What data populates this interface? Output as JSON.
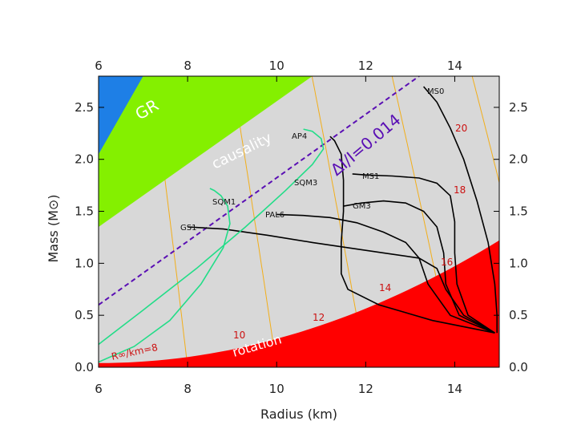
{
  "chart_data": {
    "type": "line",
    "title": "",
    "xlabel": "Radius (km)",
    "ylabel": "Mass (M⊙)",
    "xlim": [
      6,
      15
    ],
    "ylim": [
      0,
      2.8
    ],
    "xticks": [
      "6",
      "8",
      "10",
      "12",
      "14"
    ],
    "yticks": [
      "0.0",
      "0.5",
      "1.0",
      "1.5",
      "2.0",
      "2.5"
    ],
    "regions": [
      {
        "name": "GR",
        "color": "#1e7fe6"
      },
      {
        "name": "causality",
        "color": "#84f000"
      },
      {
        "name": "rotation",
        "color": "#ff0000"
      }
    ],
    "limit_line": {
      "label": "ΔI/I=0.014",
      "color": "#5a0fb4",
      "x": [
        6,
        13.2
      ],
      "y": [
        0.6,
        2.8
      ]
    },
    "background_color": "#d8d8d8",
    "iso_radius_color": "#f2ae1a",
    "iso_radius_labels": [
      "R∞/km=8",
      "10",
      "12",
      "14",
      "16",
      "18",
      "20"
    ],
    "eos_curves": [
      {
        "name": "MS0",
        "color": "#000000",
        "x": [
          14.95,
          14.95,
          14.9,
          14.75,
          14.5,
          14.2,
          13.9,
          13.6,
          13.4,
          13.3
        ],
        "y": [
          0.33,
          0.5,
          0.8,
          1.2,
          1.6,
          2.0,
          2.3,
          2.55,
          2.65,
          2.7
        ]
      },
      {
        "name": "MS1",
        "color": "#000000",
        "x": [
          14.9,
          14.3,
          14.05,
          14.0,
          14.0,
          13.9,
          13.6,
          13.2,
          12.6,
          12.0,
          11.7
        ],
        "y": [
          0.33,
          0.5,
          0.8,
          1.1,
          1.4,
          1.65,
          1.77,
          1.82,
          1.84,
          1.85,
          1.86
        ]
      },
      {
        "name": "GM3",
        "color": "#000000",
        "x": [
          14.9,
          14.1,
          13.8,
          13.75,
          13.6,
          13.3,
          12.9,
          12.4,
          11.9,
          11.5
        ],
        "y": [
          0.33,
          0.5,
          0.8,
          1.1,
          1.35,
          1.5,
          1.58,
          1.6,
          1.58,
          1.55
        ]
      },
      {
        "name": "AP4",
        "color": "#000000",
        "x": [
          14.9,
          13.5,
          12.3,
          11.6,
          11.45,
          11.45,
          11.5,
          11.5,
          11.45,
          11.3,
          11.2
        ],
        "y": [
          0.33,
          0.45,
          0.6,
          0.75,
          0.9,
          1.2,
          1.5,
          1.8,
          2.05,
          2.18,
          2.22
        ]
      },
      {
        "name": "PAL6",
        "color": "#000000",
        "x": [
          14.9,
          13.9,
          13.4,
          13.2,
          12.9,
          12.4,
          11.8,
          11.2,
          10.6,
          10.0
        ],
        "y": [
          0.33,
          0.5,
          0.8,
          1.05,
          1.2,
          1.3,
          1.39,
          1.44,
          1.46,
          1.47
        ]
      },
      {
        "name": "GS1",
        "color": "#000000",
        "x": [
          14.9,
          14.2,
          13.8,
          13.6,
          13.2,
          12.4,
          11.6,
          10.8,
          9.8,
          8.8,
          8.0
        ],
        "y": [
          0.33,
          0.5,
          0.75,
          0.95,
          1.05,
          1.1,
          1.15,
          1.2,
          1.27,
          1.33,
          1.35
        ]
      },
      {
        "name": "SQM1",
        "color": "#22dd88",
        "x": [
          6.0,
          6.8,
          7.6,
          8.3,
          8.8,
          8.95,
          8.9,
          8.75,
          8.6,
          8.5
        ],
        "y": [
          0.05,
          0.2,
          0.45,
          0.8,
          1.15,
          1.38,
          1.55,
          1.65,
          1.7,
          1.72
        ]
      },
      {
        "name": "SQM3",
        "color": "#22dd88",
        "x": [
          6.0,
          7.0,
          8.2,
          9.3,
          10.2,
          10.8,
          11.05,
          11.0,
          10.8,
          10.6
        ],
        "y": [
          0.22,
          0.55,
          0.95,
          1.35,
          1.7,
          1.95,
          2.1,
          2.2,
          2.27,
          2.29
        ]
      }
    ]
  }
}
